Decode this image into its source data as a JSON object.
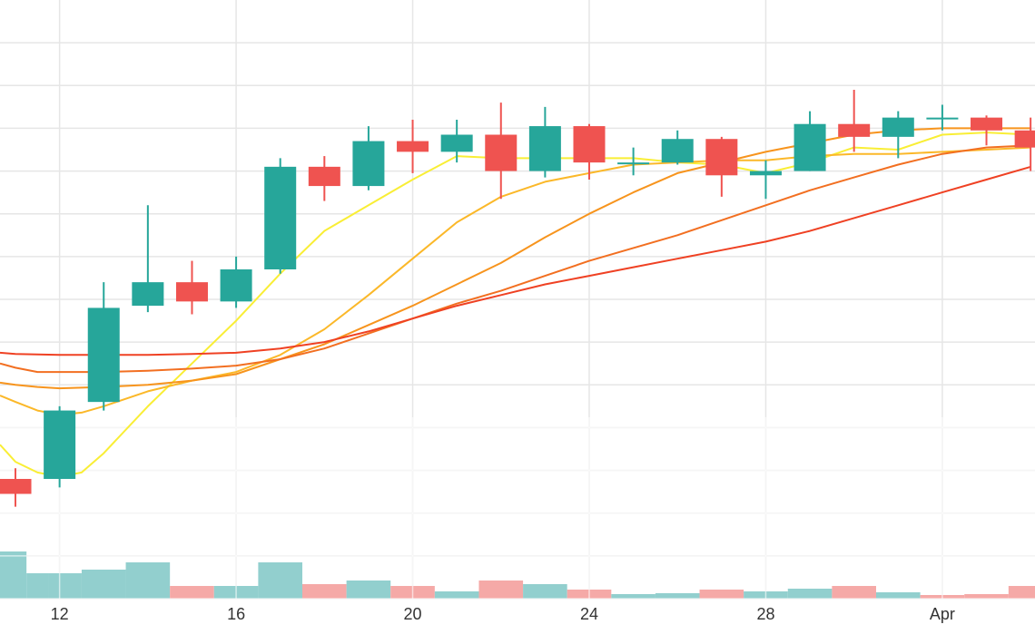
{
  "chart_data": {
    "type": "candlestick",
    "x_axis": {
      "ticks": [
        {
          "day": 12,
          "label": "12"
        },
        {
          "day": 16,
          "label": "16"
        },
        {
          "day": 20,
          "label": "20"
        },
        {
          "day": 24,
          "label": "24"
        },
        {
          "day": 28,
          "label": "28"
        },
        {
          "day": 32,
          "label": "Apr"
        }
      ],
      "range_days": [
        10.65,
        34.1
      ]
    },
    "grid": true,
    "legend": "none",
    "price_axis_range": [
      0,
      14
    ],
    "candles": [
      {
        "day": 11,
        "open": 2.8,
        "high": 3.05,
        "low": 2.15,
        "close": 2.45
      },
      {
        "day": 12,
        "open": 2.8,
        "high": 4.5,
        "low": 2.6,
        "close": 4.4
      },
      {
        "day": 13,
        "open": 4.6,
        "high": 7.4,
        "low": 4.4,
        "close": 6.8
      },
      {
        "day": 14,
        "open": 6.85,
        "high": 9.2,
        "low": 6.7,
        "close": 7.4
      },
      {
        "day": 15,
        "open": 7.4,
        "high": 7.9,
        "low": 6.65,
        "close": 6.95
      },
      {
        "day": 16,
        "open": 6.95,
        "high": 8.0,
        "low": 6.8,
        "close": 7.7
      },
      {
        "day": 17,
        "open": 7.7,
        "high": 10.3,
        "low": 7.6,
        "close": 10.1
      },
      {
        "day": 18,
        "open": 10.1,
        "high": 10.35,
        "low": 9.3,
        "close": 9.65
      },
      {
        "day": 19,
        "open": 9.65,
        "high": 11.05,
        "low": 9.55,
        "close": 10.7
      },
      {
        "day": 20,
        "open": 10.7,
        "high": 11.2,
        "low": 9.95,
        "close": 10.45
      },
      {
        "day": 21,
        "open": 10.45,
        "high": 11.2,
        "low": 10.2,
        "close": 10.85
      },
      {
        "day": 22,
        "open": 10.85,
        "high": 11.6,
        "low": 9.35,
        "close": 10.0
      },
      {
        "day": 23,
        "open": 10.0,
        "high": 11.5,
        "low": 9.85,
        "close": 11.05
      },
      {
        "day": 24,
        "open": 11.05,
        "high": 11.1,
        "low": 9.8,
        "close": 10.2
      },
      {
        "day": 25,
        "open": 10.2,
        "high": 10.55,
        "low": 9.9,
        "close": 10.2
      },
      {
        "day": 26,
        "open": 10.2,
        "high": 10.95,
        "low": 10.15,
        "close": 10.75
      },
      {
        "day": 27,
        "open": 10.75,
        "high": 10.8,
        "low": 9.4,
        "close": 9.9
      },
      {
        "day": 28,
        "open": 9.9,
        "high": 10.25,
        "low": 9.35,
        "close": 10.0
      },
      {
        "day": 29,
        "open": 10.0,
        "high": 11.4,
        "low": 10.0,
        "close": 11.1
      },
      {
        "day": 30,
        "open": 11.1,
        "high": 11.9,
        "low": 10.45,
        "close": 10.8
      },
      {
        "day": 31,
        "open": 10.8,
        "high": 11.4,
        "low": 10.3,
        "close": 11.25
      },
      {
        "day": 32,
        "open": 11.25,
        "high": 11.55,
        "low": 10.95,
        "close": 11.25
      },
      {
        "day": 33,
        "open": 11.25,
        "high": 11.3,
        "low": 10.6,
        "close": 10.95
      },
      {
        "day": 34,
        "open": 10.95,
        "high": 11.25,
        "low": 10.0,
        "close": 10.55
      }
    ],
    "moving_averages": [
      {
        "color": "#f9ee35",
        "points": [
          [
            10.65,
            3.6
          ],
          [
            11,
            3.2
          ],
          [
            11.5,
            2.95
          ],
          [
            12,
            2.85
          ],
          [
            12.5,
            2.95
          ],
          [
            13,
            3.4
          ],
          [
            14,
            4.5
          ],
          [
            15,
            5.5
          ],
          [
            16,
            6.5
          ],
          [
            17,
            7.6
          ],
          [
            18,
            8.6
          ],
          [
            19,
            9.2
          ],
          [
            20,
            9.8
          ],
          [
            21,
            10.35
          ],
          [
            22,
            10.3
          ],
          [
            23,
            10.3
          ],
          [
            24,
            10.3
          ],
          [
            25,
            10.3
          ],
          [
            26,
            10.2
          ],
          [
            27,
            10.15
          ],
          [
            28,
            9.95
          ],
          [
            29,
            10.2
          ],
          [
            30,
            10.55
          ],
          [
            31,
            10.5
          ],
          [
            32,
            10.85
          ],
          [
            33,
            10.9
          ],
          [
            34,
            10.85
          ]
        ]
      },
      {
        "color": "#fbb829",
        "points": [
          [
            10.65,
            4.75
          ],
          [
            11,
            4.6
          ],
          [
            11.5,
            4.4
          ],
          [
            12,
            4.3
          ],
          [
            12.5,
            4.35
          ],
          [
            13,
            4.5
          ],
          [
            14,
            4.85
          ],
          [
            15,
            5.1
          ],
          [
            16,
            5.3
          ],
          [
            17,
            5.7
          ],
          [
            18,
            6.3
          ],
          [
            19,
            7.1
          ],
          [
            20,
            7.95
          ],
          [
            21,
            8.8
          ],
          [
            22,
            9.4
          ],
          [
            23,
            9.75
          ],
          [
            24,
            9.95
          ],
          [
            25,
            10.15
          ],
          [
            26,
            10.2
          ],
          [
            27,
            10.25
          ],
          [
            28,
            10.25
          ],
          [
            29,
            10.35
          ],
          [
            30,
            10.4
          ],
          [
            31,
            10.4
          ],
          [
            32,
            10.45
          ],
          [
            33,
            10.5
          ],
          [
            34,
            10.55
          ]
        ]
      },
      {
        "color": "#f7941d",
        "points": [
          [
            10.65,
            5.05
          ],
          [
            11,
            5.0
          ],
          [
            11.5,
            4.95
          ],
          [
            12,
            4.92
          ],
          [
            13,
            4.95
          ],
          [
            14,
            5.0
          ],
          [
            15,
            5.1
          ],
          [
            16,
            5.25
          ],
          [
            17,
            5.6
          ],
          [
            18,
            5.95
          ],
          [
            19,
            6.4
          ],
          [
            20,
            6.85
          ],
          [
            21,
            7.35
          ],
          [
            22,
            7.85
          ],
          [
            23,
            8.45
          ],
          [
            24,
            9.0
          ],
          [
            25,
            9.5
          ],
          [
            26,
            9.95
          ],
          [
            27,
            10.2
          ],
          [
            28,
            10.45
          ],
          [
            29,
            10.65
          ],
          [
            30,
            10.85
          ],
          [
            31,
            10.95
          ],
          [
            32,
            11.0
          ],
          [
            33,
            11.0
          ],
          [
            34,
            11.0
          ]
        ]
      },
      {
        "color": "#f26f21",
        "points": [
          [
            10.65,
            5.5
          ],
          [
            11,
            5.4
          ],
          [
            11.5,
            5.3
          ],
          [
            12,
            5.3
          ],
          [
            13,
            5.3
          ],
          [
            14,
            5.33
          ],
          [
            15,
            5.38
          ],
          [
            16,
            5.45
          ],
          [
            17,
            5.6
          ],
          [
            18,
            5.85
          ],
          [
            19,
            6.2
          ],
          [
            20,
            6.55
          ],
          [
            21,
            6.9
          ],
          [
            22,
            7.2
          ],
          [
            23,
            7.55
          ],
          [
            24,
            7.9
          ],
          [
            25,
            8.2
          ],
          [
            26,
            8.5
          ],
          [
            27,
            8.85
          ],
          [
            28,
            9.2
          ],
          [
            29,
            9.55
          ],
          [
            30,
            9.85
          ],
          [
            31,
            10.15
          ],
          [
            32,
            10.4
          ],
          [
            33,
            10.55
          ],
          [
            34,
            10.6
          ]
        ]
      },
      {
        "color": "#ef4123",
        "points": [
          [
            10.65,
            5.75
          ],
          [
            11,
            5.72
          ],
          [
            12,
            5.7
          ],
          [
            13,
            5.7
          ],
          [
            14,
            5.7
          ],
          [
            15,
            5.72
          ],
          [
            16,
            5.75
          ],
          [
            17,
            5.85
          ],
          [
            18,
            6.0
          ],
          [
            19,
            6.25
          ],
          [
            20,
            6.55
          ],
          [
            21,
            6.85
          ],
          [
            22,
            7.1
          ],
          [
            23,
            7.35
          ],
          [
            24,
            7.55
          ],
          [
            25,
            7.75
          ],
          [
            26,
            7.95
          ],
          [
            27,
            8.15
          ],
          [
            28,
            8.35
          ],
          [
            29,
            8.6
          ],
          [
            30,
            8.9
          ],
          [
            31,
            9.2
          ],
          [
            32,
            9.5
          ],
          [
            33,
            9.8
          ],
          [
            34,
            10.1
          ]
        ]
      }
    ],
    "volume_range": [
      0,
      100
    ],
    "volumes": [
      {
        "day": 11,
        "value": 26,
        "direction": "up"
      },
      {
        "day": 11.5,
        "value": 14,
        "direction": "up"
      },
      {
        "day": 12,
        "value": 14,
        "direction": "up"
      },
      {
        "day": 13,
        "value": 16,
        "direction": "up"
      },
      {
        "day": 14,
        "value": 20,
        "direction": "up"
      },
      {
        "day": 15,
        "value": 7,
        "direction": "down"
      },
      {
        "day": 16,
        "value": 7,
        "direction": "up"
      },
      {
        "day": 17,
        "value": 20,
        "direction": "up"
      },
      {
        "day": 18,
        "value": 8,
        "direction": "down"
      },
      {
        "day": 19,
        "value": 10,
        "direction": "up"
      },
      {
        "day": 20,
        "value": 7,
        "direction": "down"
      },
      {
        "day": 21,
        "value": 4,
        "direction": "up"
      },
      {
        "day": 22,
        "value": 10,
        "direction": "down"
      },
      {
        "day": 23,
        "value": 8,
        "direction": "up"
      },
      {
        "day": 24,
        "value": 5,
        "direction": "down"
      },
      {
        "day": 25,
        "value": 2.5,
        "direction": "up"
      },
      {
        "day": 26,
        "value": 3,
        "direction": "up"
      },
      {
        "day": 27,
        "value": 5,
        "direction": "down"
      },
      {
        "day": 28,
        "value": 4,
        "direction": "up"
      },
      {
        "day": 29,
        "value": 5.5,
        "direction": "up"
      },
      {
        "day": 30,
        "value": 7,
        "direction": "down"
      },
      {
        "day": 31,
        "value": 3.5,
        "direction": "up"
      },
      {
        "day": 32,
        "value": 2,
        "direction": "down"
      },
      {
        "day": 33,
        "value": 2.5,
        "direction": "down"
      },
      {
        "day": 34,
        "value": 7,
        "direction": "down"
      }
    ],
    "colors": {
      "up": "#26a69a",
      "down": "#ef5350",
      "volume_up": "#92cfce",
      "volume_down": "#f5a9a7",
      "grid": "#e6e6e6"
    }
  }
}
